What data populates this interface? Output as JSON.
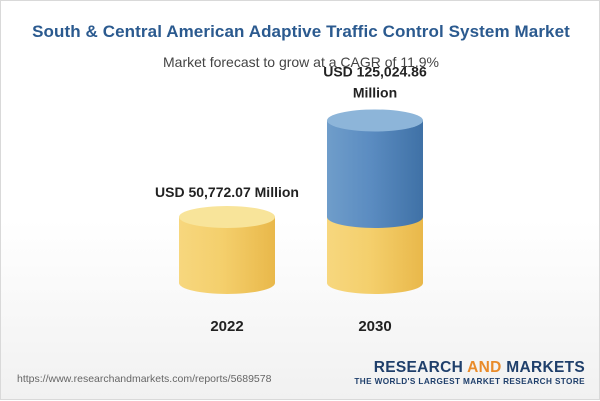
{
  "title": "South & Central American Adaptive Traffic Control System Market",
  "subtitle": "Market forecast to grow at a CAGR of 11.9%",
  "chart_data": {
    "type": "bar",
    "categories": [
      "2022",
      "2030"
    ],
    "values": [
      50772.07,
      125024.86
    ],
    "base_value": 50772.07,
    "data_labels": [
      "USD 50,772.07 Million",
      "USD 125,024.86 Million"
    ],
    "title": "South & Central American Adaptive Traffic Control System Market",
    "subtitle": "Market forecast to grow at a CAGR of 11.9%",
    "unit": "USD Million",
    "cagr": "11.9%",
    "grid": false,
    "legend": "none",
    "colors": {
      "base_top": "#f8e49a",
      "base_side": "#f0c65a",
      "growth_top": "#8db5d9",
      "growth_side": "#4f82b8"
    }
  },
  "footer": {
    "url": "https://www.researchandmarkets.com/reports/5689578"
  },
  "brand": {
    "word1": "RESEARCH",
    "word2": "AND",
    "word3": "MARKETS",
    "tagline": "THE WORLD'S LARGEST MARKET RESEARCH STORE"
  }
}
